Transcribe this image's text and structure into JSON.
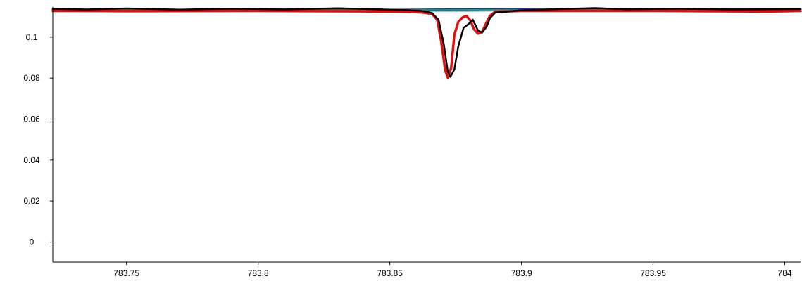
{
  "chart_data": {
    "type": "line",
    "title": "",
    "xlabel": "",
    "ylabel": "",
    "xlim": [
      783.722,
      784.006
    ],
    "ylim": [
      -0.0098,
      0.1147
    ],
    "grid": false,
    "legend": "none",
    "x_ticks": [
      {
        "value": 783.75,
        "label": "783.75"
      },
      {
        "value": 783.8,
        "label": "783.8"
      },
      {
        "value": 783.85,
        "label": "783.85"
      },
      {
        "value": 783.9,
        "label": "783.9"
      },
      {
        "value": 783.95,
        "label": "783.95"
      },
      {
        "value": 784.0,
        "label": "784"
      }
    ],
    "y_ticks": [
      {
        "value": 0.0,
        "label": "0"
      },
      {
        "value": 0.02,
        "label": "0.02"
      },
      {
        "value": 0.04,
        "label": "0.04"
      },
      {
        "value": 0.06,
        "label": "0.06"
      },
      {
        "value": 0.08,
        "label": "0.08"
      },
      {
        "value": 0.1,
        "label": "0.1"
      }
    ],
    "series": [
      {
        "color": "#2b2bb4",
        "width": 3,
        "x": [
          783.722,
          783.735,
          783.75,
          783.77,
          783.79,
          783.81,
          783.83,
          783.85,
          783.87,
          783.89,
          783.91,
          783.93,
          783.95,
          783.97,
          783.99,
          784.006
        ],
        "y": [
          0.1135,
          0.1132,
          0.1138,
          0.1133,
          0.1136,
          0.1134,
          0.1137,
          0.1133,
          0.1135,
          0.1136,
          0.1134,
          0.1137,
          0.1133,
          0.1136,
          0.1134,
          0.1135
        ]
      },
      {
        "color": "#2e9c3e",
        "width": 1.5,
        "x": [
          783.722,
          783.76,
          783.8,
          783.84,
          783.88,
          783.92,
          783.96,
          784.006
        ],
        "y": [
          0.1133,
          0.1134,
          0.1132,
          0.1133,
          0.1134,
          0.1133,
          0.1134,
          0.1133
        ]
      },
      {
        "color": "#1fb7c4",
        "width": 1.5,
        "x": [
          783.85,
          783.86,
          783.87,
          783.88,
          783.89,
          783.9
        ],
        "y": [
          0.1128,
          0.1127,
          0.1127,
          0.1127,
          0.1128,
          0.1129
        ]
      },
      {
        "color": "#e01010",
        "width": 3.5,
        "x": [
          783.722,
          783.75,
          783.8,
          783.84,
          783.855,
          783.862,
          783.866,
          783.868,
          783.8695,
          783.871,
          783.872,
          783.8733,
          783.8745,
          783.876,
          783.8775,
          783.879,
          783.8805,
          783.882,
          783.8835,
          783.885,
          783.8865,
          783.888,
          783.89,
          783.9,
          783.95,
          783.995,
          784.006
        ],
        "y": [
          0.1128,
          0.1127,
          0.1128,
          0.1126,
          0.1124,
          0.1121,
          0.1114,
          0.1085,
          0.098,
          0.084,
          0.0802,
          0.085,
          0.1012,
          0.1074,
          0.1095,
          0.1104,
          0.1083,
          0.1038,
          0.1017,
          0.1025,
          0.1065,
          0.1104,
          0.1124,
          0.1128,
          0.1128,
          0.1125,
          0.1128
        ]
      },
      {
        "color": "#000000",
        "width": 2.5,
        "x": [
          783.722,
          783.735,
          783.75,
          783.77,
          783.79,
          783.81,
          783.83,
          783.845,
          783.856,
          783.862,
          783.866,
          783.8685,
          783.8705,
          783.872,
          783.873,
          783.8745,
          783.876,
          783.878,
          783.88,
          783.8815,
          783.8835,
          783.885,
          783.8868,
          783.888,
          783.89,
          783.9,
          783.915,
          783.928,
          783.94,
          783.96,
          783.98,
          784.006
        ],
        "y": [
          0.1138,
          0.1135,
          0.114,
          0.1134,
          0.1139,
          0.1135,
          0.1141,
          0.1136,
          0.1132,
          0.1128,
          0.1118,
          0.1085,
          0.0965,
          0.0832,
          0.0806,
          0.0842,
          0.0955,
          0.1045,
          0.1065,
          0.1085,
          0.1032,
          0.1022,
          0.1052,
          0.1092,
          0.112,
          0.1131,
          0.1137,
          0.1142,
          0.1136,
          0.1139,
          0.1135,
          0.1137
        ]
      }
    ]
  }
}
